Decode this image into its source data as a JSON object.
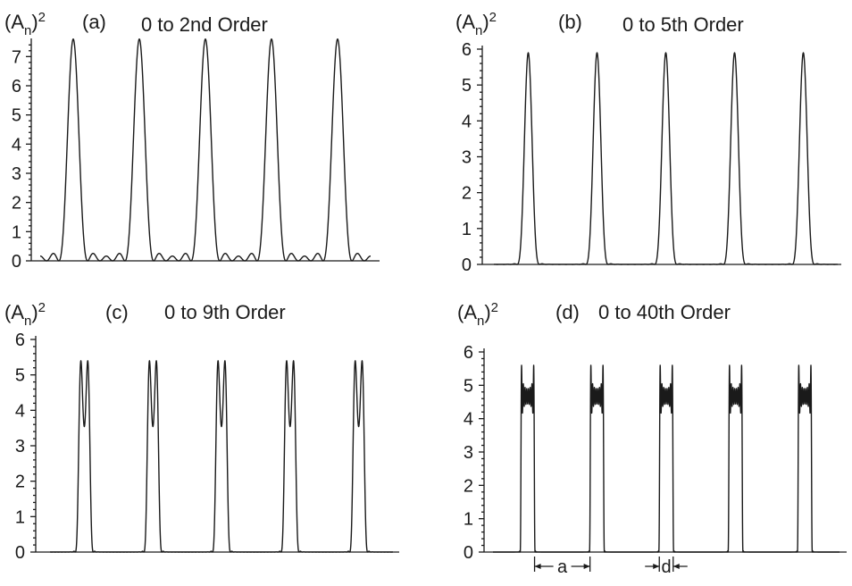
{
  "chart_data": [
    {
      "type": "line",
      "tag": "(a)",
      "title": "0 to 2nd Order",
      "ylabel": "(A",
      "ylabel_sub": "n",
      "ylabel_sup": ")",
      "ylabel_pow": "2",
      "ylim": [
        0,
        7.5
      ],
      "yticks": [
        "0",
        "1",
        "2",
        "3",
        "4",
        "5",
        "6",
        "7"
      ],
      "N": 2,
      "periods": 5,
      "peak": 7.6
    },
    {
      "type": "line",
      "tag": "(b)",
      "title": "0  to  5th  Order",
      "ylabel": "(A",
      "ylabel_sub": "n",
      "ylabel_sup": ")",
      "ylabel_pow": "2",
      "ylim": [
        0,
        6
      ],
      "yticks": [
        "0",
        "1",
        "2",
        "3",
        "4",
        "5",
        "6"
      ],
      "N": 5,
      "periods": 5,
      "peak": 5.9
    },
    {
      "type": "line",
      "tag": "(c)",
      "title": "0  to  9th  Order",
      "ylabel": "(A",
      "ylabel_sub": "n",
      "ylabel_sup": ")",
      "ylabel_pow": "2",
      "ylim": [
        0,
        6
      ],
      "yticks": [
        "0",
        "1",
        "2",
        "3",
        "4",
        "5",
        "6"
      ],
      "N": 9,
      "periods": 5,
      "peak": 5.4
    },
    {
      "type": "line",
      "tag": "(d)",
      "title": "0  to  40th  Order",
      "ylabel": "(A",
      "ylabel_sub": "n",
      "ylabel_sup": ")",
      "ylabel_pow": "2",
      "ylim": [
        0,
        6
      ],
      "yticks": [
        "0",
        "1",
        "2",
        "3",
        "4",
        "5",
        "6"
      ],
      "N": 40,
      "periods": 5,
      "peak": 5.6,
      "annotations": [
        "a",
        "d"
      ]
    }
  ]
}
